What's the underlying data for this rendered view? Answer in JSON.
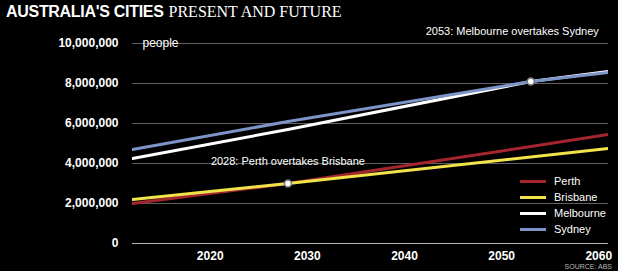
{
  "chart_data": {
    "type": "line",
    "title": "AUSTRALIA'S CITIES",
    "subtitle": "PRESENT AND FUTURE",
    "ylabel": "people",
    "source": "SOURCE: ABS",
    "x": [
      2012,
      2028,
      2053,
      2061
    ],
    "series": [
      {
        "name": "Perth",
        "color": "#a5252f",
        "values": [
          2000000,
          3000000,
          4850000,
          5450000
        ]
      },
      {
        "name": "Brisbane",
        "color": "#f0e44a",
        "values": [
          2200000,
          3000000,
          4330000,
          4750000
        ]
      },
      {
        "name": "Melbourne",
        "color": "#ffffff",
        "values": [
          4250000,
          5700000,
          8100000,
          8600000
        ]
      },
      {
        "name": "Sydney",
        "color": "#7d94c8",
        "values": [
          4700000,
          6100000,
          8100000,
          8550000
        ]
      }
    ],
    "xlim": [
      2012,
      2061
    ],
    "xticks": [
      2020,
      2030,
      2040,
      2050,
      2060
    ],
    "ylim": [
      0,
      10000000
    ],
    "yticks": [
      0,
      {
        "value": 2000000,
        "label": "2,000,000"
      },
      {
        "value": 4000000,
        "label": "4,000,000"
      },
      {
        "value": 6000000,
        "label": "6,000,000"
      },
      {
        "value": 8000000,
        "label": "8,000,000"
      },
      {
        "value": 10000000,
        "label": "10,000,000"
      }
    ],
    "grid": true,
    "legend": "lower right",
    "annotations": [
      {
        "text": "2028: Perth overtakes Brisbane",
        "x": 2028,
        "y": 3000000
      },
      {
        "text": "2053: Melbourne overtakes Sydney",
        "x": 2053,
        "y": 8100000
      }
    ]
  }
}
